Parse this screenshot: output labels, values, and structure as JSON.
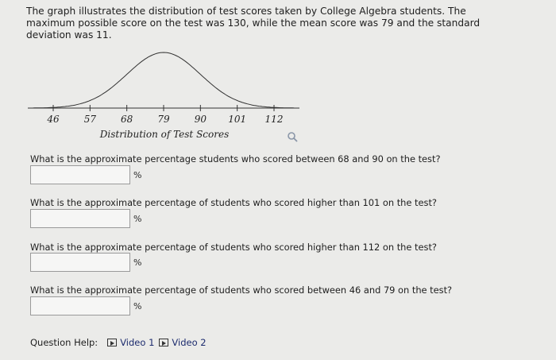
{
  "intro": "The graph illustrates the distribution of test scores taken by College Algebra students. The maximum possible score on the test was 130, while the mean score was 79 and the standard deviation was 11.",
  "chart_data": {
    "type": "line",
    "title": "",
    "xlabel": "Distribution of Test Scores",
    "mean": 79,
    "sd": 11,
    "x_ticks": [
      46,
      57,
      68,
      79,
      90,
      101,
      112
    ],
    "xlim": [
      39,
      130
    ]
  },
  "questions": [
    {
      "text": "What is the approximate percentage students who scored between 68 and 90 on the test?",
      "value": "",
      "unit": "%"
    },
    {
      "text": "What is the approximate percentage of students who scored higher than 101 on the test?",
      "value": "",
      "unit": "%"
    },
    {
      "text": "What is the approximate percentage of students who scored higher than 112 on the test?",
      "value": "",
      "unit": "%"
    },
    {
      "text": "What is the approximate percentage of students who scored between 46 and 79 on the test?",
      "value": "",
      "unit": "%"
    }
  ],
  "help": {
    "label": "Question Help:",
    "video1": "Video 1",
    "video2": "Video 2"
  },
  "icons": {
    "zoom": "magnifier-icon",
    "video": "play-box-icon"
  }
}
